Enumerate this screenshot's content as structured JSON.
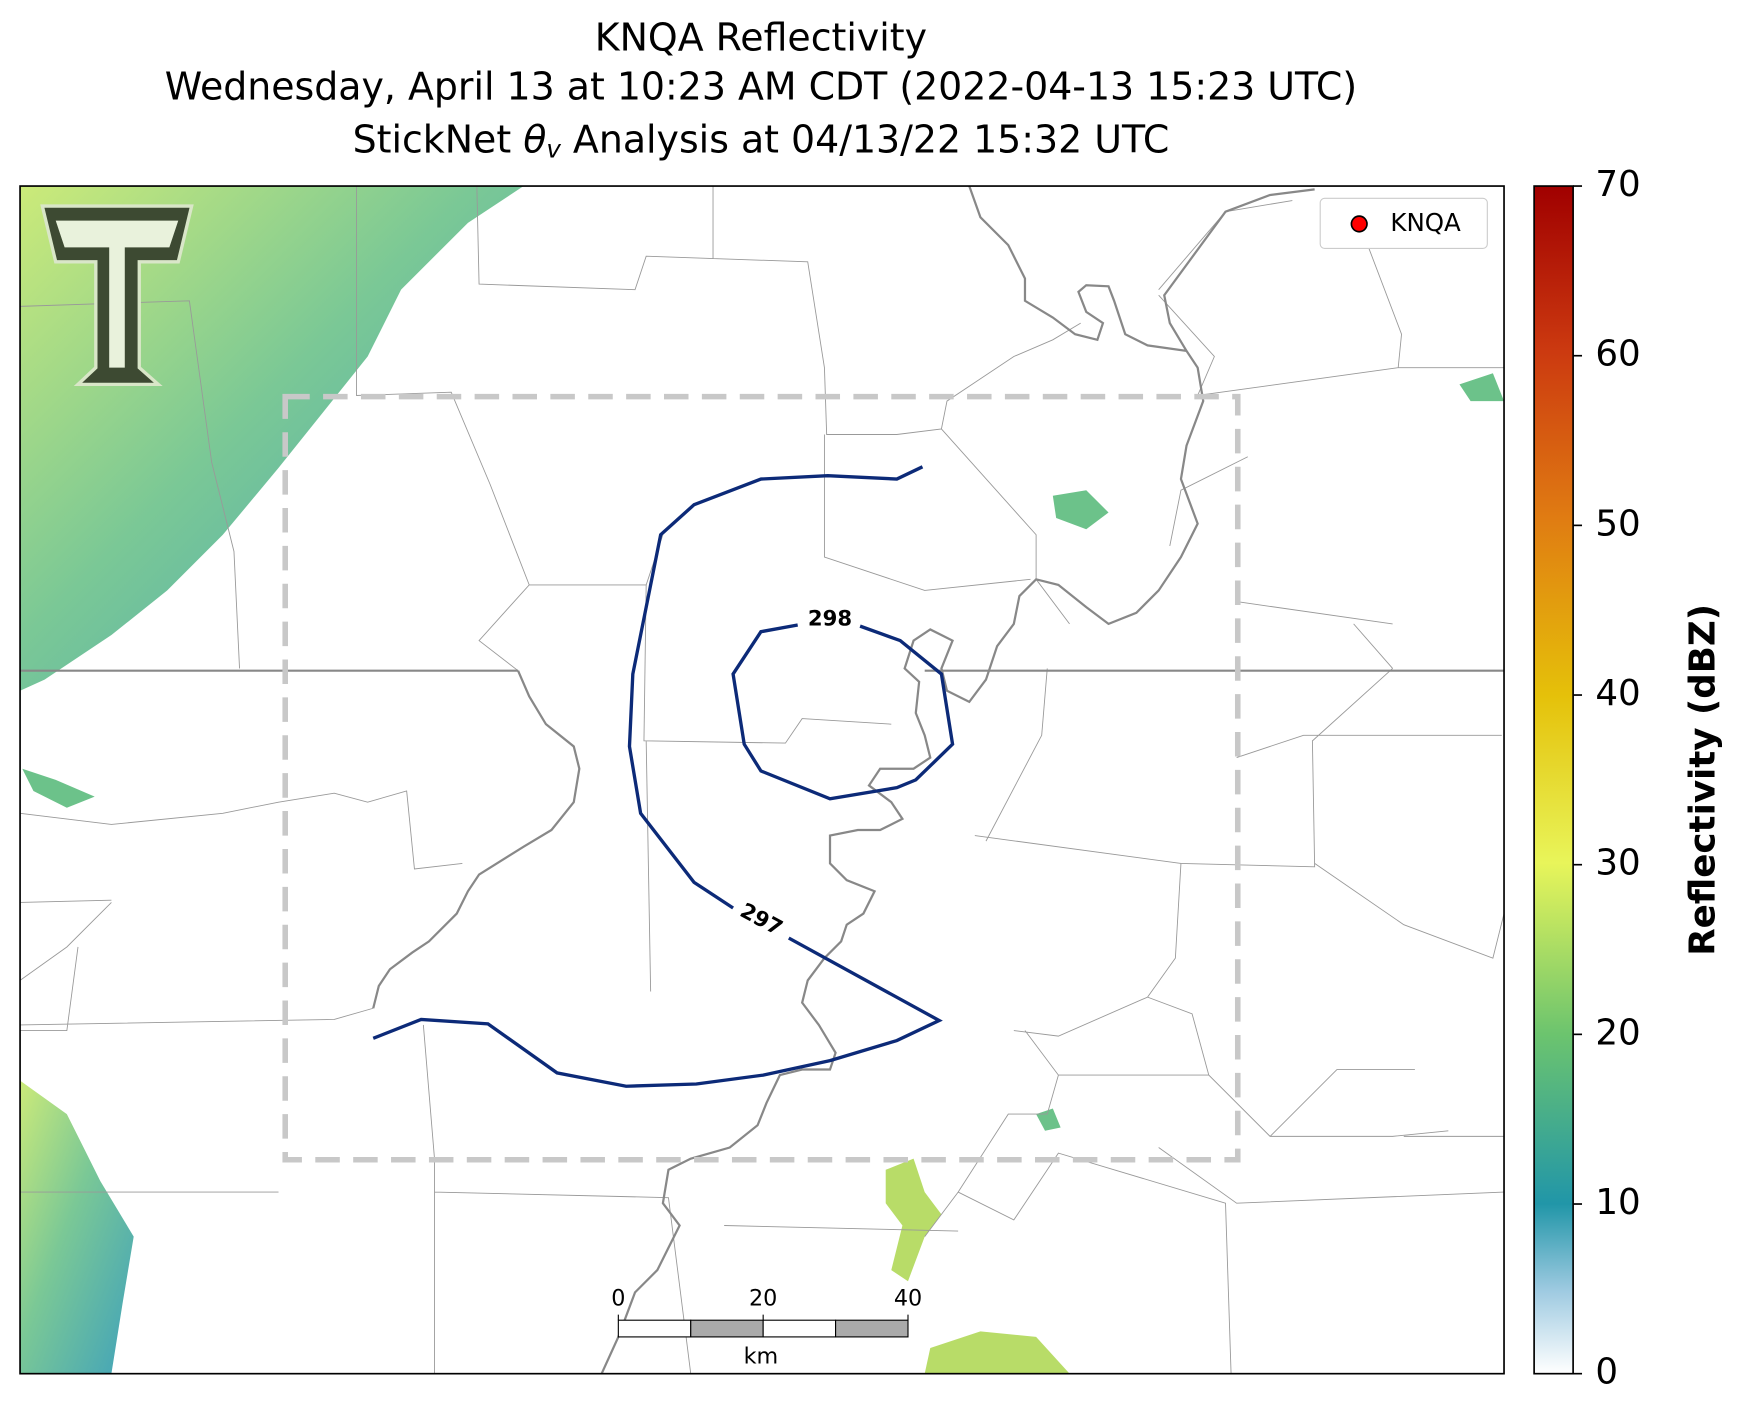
{
  "title": {
    "line1": "KNQA Reflectivity",
    "line2": "Wednesday, April 13 at 10:23 AM CDT (2022-04-13 15:23 UTC)",
    "line3": {
      "prefix": "StickNet",
      "symbol": "θ",
      "subscript": "v",
      "suffix": "Analysis at 04/13/22 15:32 UTC"
    }
  },
  "legend": {
    "label": "KNQA",
    "color": "#ff0000"
  },
  "contours": [
    {
      "level": 298,
      "color": "#0c2a78"
    },
    {
      "level": 297,
      "color": "#0c2a78"
    }
  ],
  "colorbar": {
    "label": "Reflectivity (dBZ)",
    "lim": [
      0,
      70
    ],
    "ticks": [
      0,
      10,
      20,
      30,
      40,
      50,
      60,
      70
    ]
  },
  "scalebar": {
    "ticks": [
      0,
      20,
      40
    ],
    "unit": "km"
  }
}
